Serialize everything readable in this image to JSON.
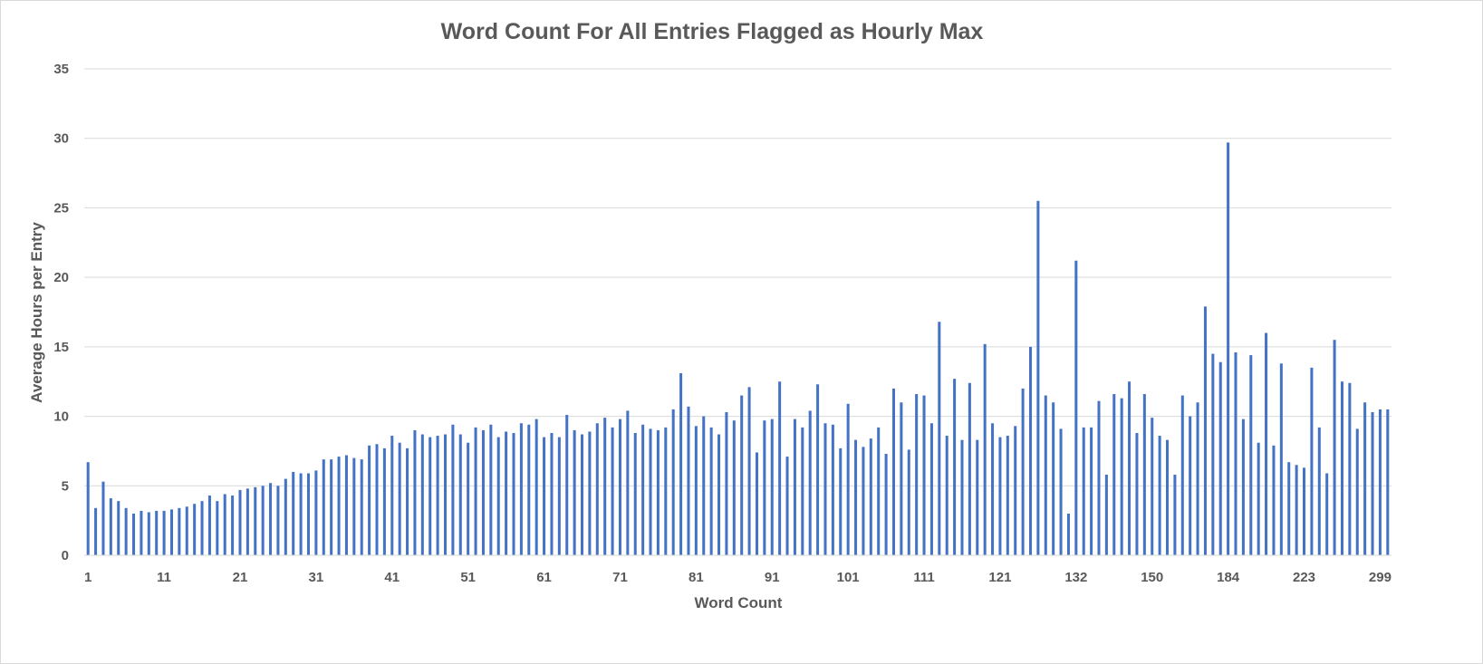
{
  "chart_data": {
    "type": "bar",
    "title": "Word Count For All Entries Flagged as Hourly Max",
    "xlabel": "Word Count",
    "ylabel": "Average Hours per Entry",
    "ylim": [
      0,
      35
    ],
    "yticks": [
      0,
      5,
      10,
      15,
      20,
      25,
      30,
      35
    ],
    "grid": true,
    "legend": "none",
    "bar_color": "#4472c4",
    "x_tick_labels": [
      "1",
      "11",
      "21",
      "31",
      "41",
      "51",
      "61",
      "71",
      "81",
      "91",
      "101",
      "111",
      "121",
      "132",
      "150",
      "184",
      "223",
      "299"
    ],
    "x_tick_label_positions": [
      0,
      10,
      20,
      30,
      40,
      50,
      60,
      70,
      80,
      90,
      100,
      110,
      120,
      130,
      140,
      150,
      160,
      170
    ],
    "values": [
      6.7,
      3.4,
      5.3,
      4.1,
      3.9,
      3.4,
      3.0,
      3.2,
      3.1,
      3.2,
      3.2,
      3.3,
      3.4,
      3.5,
      3.7,
      3.9,
      4.3,
      3.9,
      4.4,
      4.3,
      4.7,
      4.8,
      4.9,
      5.0,
      5.2,
      5.0,
      5.5,
      6.0,
      5.9,
      5.9,
      6.1,
      6.9,
      6.9,
      7.1,
      7.2,
      7.0,
      6.9,
      7.9,
      8.0,
      7.7,
      8.6,
      8.1,
      7.7,
      9.0,
      8.7,
      8.5,
      8.6,
      8.7,
      9.4,
      8.7,
      8.1,
      9.2,
      9.0,
      9.4,
      8.5,
      8.9,
      8.8,
      9.5,
      9.4,
      9.8,
      8.5,
      8.8,
      8.5,
      10.1,
      9.0,
      8.7,
      8.9,
      9.5,
      9.9,
      9.2,
      9.8,
      10.4,
      8.8,
      9.4,
      9.1,
      9.0,
      9.2,
      10.5,
      13.1,
      10.7,
      9.3,
      10.0,
      9.2,
      8.7,
      10.3,
      9.7,
      11.5,
      12.1,
      7.4,
      9.7,
      9.8,
      12.5,
      7.1,
      9.8,
      9.2,
      10.4,
      12.3,
      9.5,
      9.4,
      7.7,
      10.9,
      8.3,
      7.8,
      8.4,
      9.2,
      7.3,
      12.0,
      11.0,
      7.6,
      11.6,
      11.5,
      9.5,
      16.8,
      8.6,
      12.7,
      8.3,
      12.4,
      8.3,
      15.2,
      9.5,
      8.5,
      8.6,
      9.3,
      12.0,
      15.0,
      25.5,
      11.5,
      11.0,
      9.1,
      3.0,
      21.2,
      9.2,
      9.2,
      11.1,
      5.8,
      11.6,
      11.3,
      12.5,
      8.8,
      11.6,
      9.9,
      8.6,
      8.3,
      5.8,
      11.5,
      10.0,
      11.0,
      17.9,
      14.5,
      13.9,
      29.7,
      14.6,
      9.8,
      14.4,
      8.1,
      16.0,
      7.9,
      13.8,
      6.7,
      6.5,
      6.3,
      13.5,
      9.2,
      5.9,
      15.5,
      12.5,
      12.4,
      9.1,
      11.0,
      10.3,
      10.5,
      10.5
    ]
  }
}
